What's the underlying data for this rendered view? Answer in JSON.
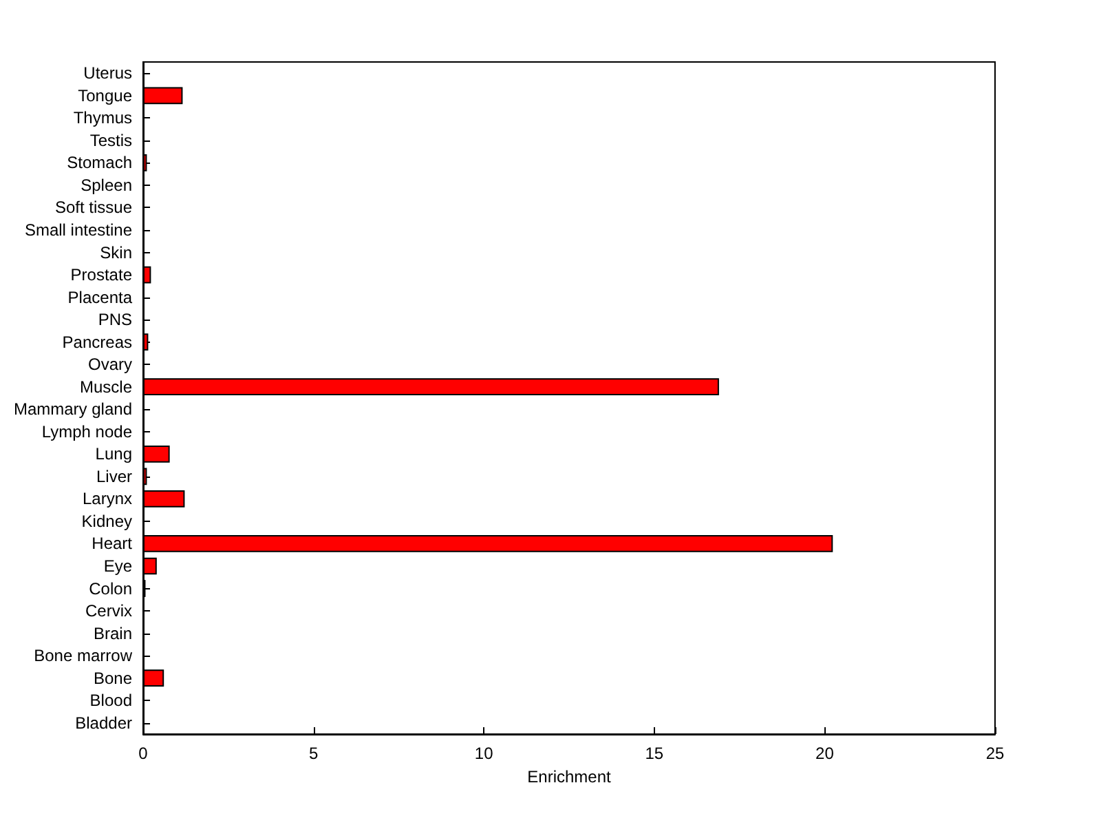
{
  "chart_data": {
    "type": "bar",
    "orientation": "horizontal",
    "xlabel": "Enrichment",
    "categories": [
      "Uterus",
      "Tongue",
      "Thymus",
      "Testis",
      "Stomach",
      "Spleen",
      "Soft tissue",
      "Small intestine",
      "Skin",
      "Prostate",
      "Placenta",
      "PNS",
      "Pancreas",
      "Ovary",
      "Muscle",
      "Mammary gland",
      "Lymph node",
      "Lung",
      "Liver",
      "Larynx",
      "Kidney",
      "Heart",
      "Eye",
      "Colon",
      "Cervix",
      "Brain",
      "Bone marrow",
      "Bone",
      "Blood",
      "Bladder"
    ],
    "values": [
      0,
      1.16,
      0,
      0,
      0.11,
      0,
      0,
      0,
      0,
      0.23,
      0,
      0,
      0.15,
      0,
      16.9,
      0,
      0,
      0.78,
      0.11,
      1.22,
      0,
      20.24,
      0.4,
      0.07,
      0,
      0,
      0,
      0.61,
      0,
      0
    ],
    "color": "#ff0000",
    "xlim": [
      0,
      25
    ],
    "xticks": [
      0,
      5,
      10,
      15,
      20,
      25
    ],
    "grid": false
  }
}
